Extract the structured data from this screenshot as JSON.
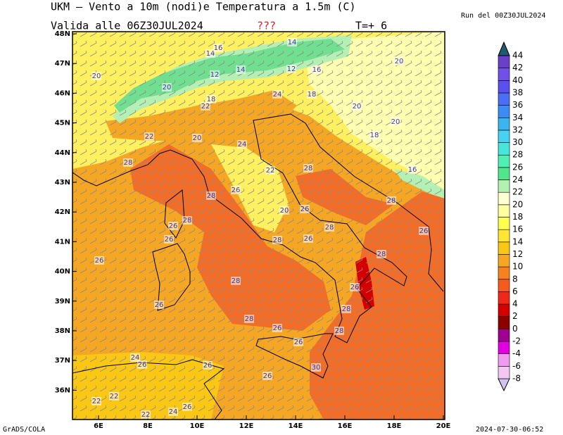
{
  "header": {
    "title": "UKM – Vento a 10m (nodi)e Temperatura a 1.5m (C)",
    "valid": "Valida alle 06Z30JUL2024",
    "flag": "???",
    "step": "T=+ 6",
    "run": "Run del 00Z30JUL2024"
  },
  "map": {
    "lat_labels": [
      "48N",
      "47N",
      "46N",
      "45N",
      "44N",
      "43N",
      "42N",
      "41N",
      "40N",
      "39N",
      "38N",
      "37N",
      "36N"
    ],
    "lon_labels": [
      "6E",
      "8E",
      "10E",
      "12E",
      "14E",
      "16E",
      "18E",
      "20E"
    ],
    "contour_labels": [
      14,
      16,
      14,
      20,
      20,
      20,
      12,
      14,
      12,
      16,
      18,
      22,
      24,
      18,
      20,
      20,
      22,
      20,
      24,
      18,
      28,
      22,
      28,
      16,
      26,
      28,
      28,
      20,
      26,
      28,
      26,
      28,
      26,
      26,
      28,
      26,
      28,
      26,
      28,
      26,
      26,
      28,
      28,
      26,
      28,
      26,
      24,
      26,
      26,
      30,
      26,
      22,
      22,
      24,
      26,
      22
    ]
  },
  "colorbar": {
    "labels": [
      44,
      42,
      40,
      38,
      36,
      34,
      32,
      30,
      28,
      26,
      24,
      22,
      20,
      18,
      16,
      14,
      12,
      10,
      8,
      6,
      4,
      2,
      0,
      -2,
      -4,
      -6,
      -8
    ],
    "colors": [
      "#d2c4f2",
      "#f2c8f2",
      "#f09af0",
      "#e000e0",
      "#a00090",
      "#8c0000",
      "#d40000",
      "#f02818",
      "#f55a1e",
      "#f5821e",
      "#f5a623",
      "#fac814",
      "#ffe632",
      "#ffff50",
      "#ffffa0",
      "#ffffd2",
      "#b4f0b4",
      "#50e68c",
      "#50f0b4",
      "#46e6dc",
      "#46d2f0",
      "#3cb4f0",
      "#3c8cf5",
      "#4a6ef5",
      "#5a50f0",
      "#7050e6",
      "#6a40c8",
      "#1e5a70"
    ]
  },
  "footer": {
    "left": "GrADS/COLA",
    "right": "2024-07-30-06:52"
  }
}
